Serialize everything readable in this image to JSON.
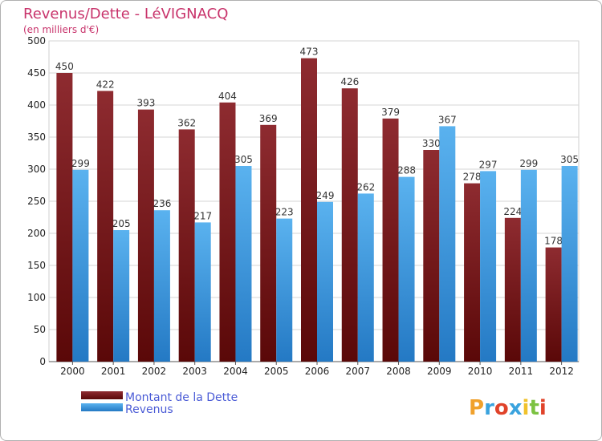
{
  "chart_data": {
    "type": "bar",
    "title": "Revenus/Dette - LéVIGNACQ",
    "subtitle": "(en milliers d'€)",
    "categories": [
      "2000",
      "2001",
      "2002",
      "2003",
      "2004",
      "2005",
      "2006",
      "2007",
      "2008",
      "2009",
      "2010",
      "2011",
      "2012"
    ],
    "series": [
      {
        "name": "Montant de la Dette",
        "color": "#7a1b1f",
        "values": [
          450,
          422,
          393,
          362,
          404,
          369,
          473,
          426,
          379,
          330,
          278,
          224,
          178
        ]
      },
      {
        "name": "Revenus",
        "color": "#3b9be6",
        "values": [
          299,
          205,
          236,
          217,
          305,
          223,
          249,
          262,
          288,
          367,
          297,
          299,
          305
        ]
      }
    ],
    "ylim": [
      0,
      500
    ],
    "yticks": [
      0,
      50,
      100,
      150,
      200,
      250,
      300,
      350,
      400,
      450,
      500
    ],
    "grid": true,
    "legend_position": "bottom-left"
  },
  "logo_text": "Proxiti"
}
